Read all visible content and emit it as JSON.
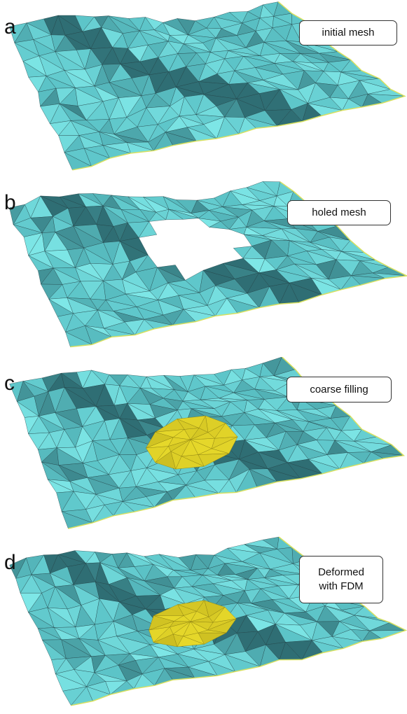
{
  "panels": [
    {
      "letter": "a",
      "caption": "initial mesh",
      "state": "initial"
    },
    {
      "letter": "b",
      "caption": "holed mesh",
      "state": "hole"
    },
    {
      "letter": "c",
      "caption": "coarse filling",
      "state": "coarse"
    },
    {
      "letter": "d",
      "caption": "Deformed\nwith FDM",
      "state": "deformed"
    }
  ],
  "colors": {
    "mesh_light": "#7fe8e8",
    "mesh_mid": "#5cc4c8",
    "mesh_dark": "#2f6e74",
    "mesh_edge": "#1d3e42",
    "patch": "#e6d82a",
    "patch_dark": "#b3a418",
    "border": "#d8e060"
  }
}
